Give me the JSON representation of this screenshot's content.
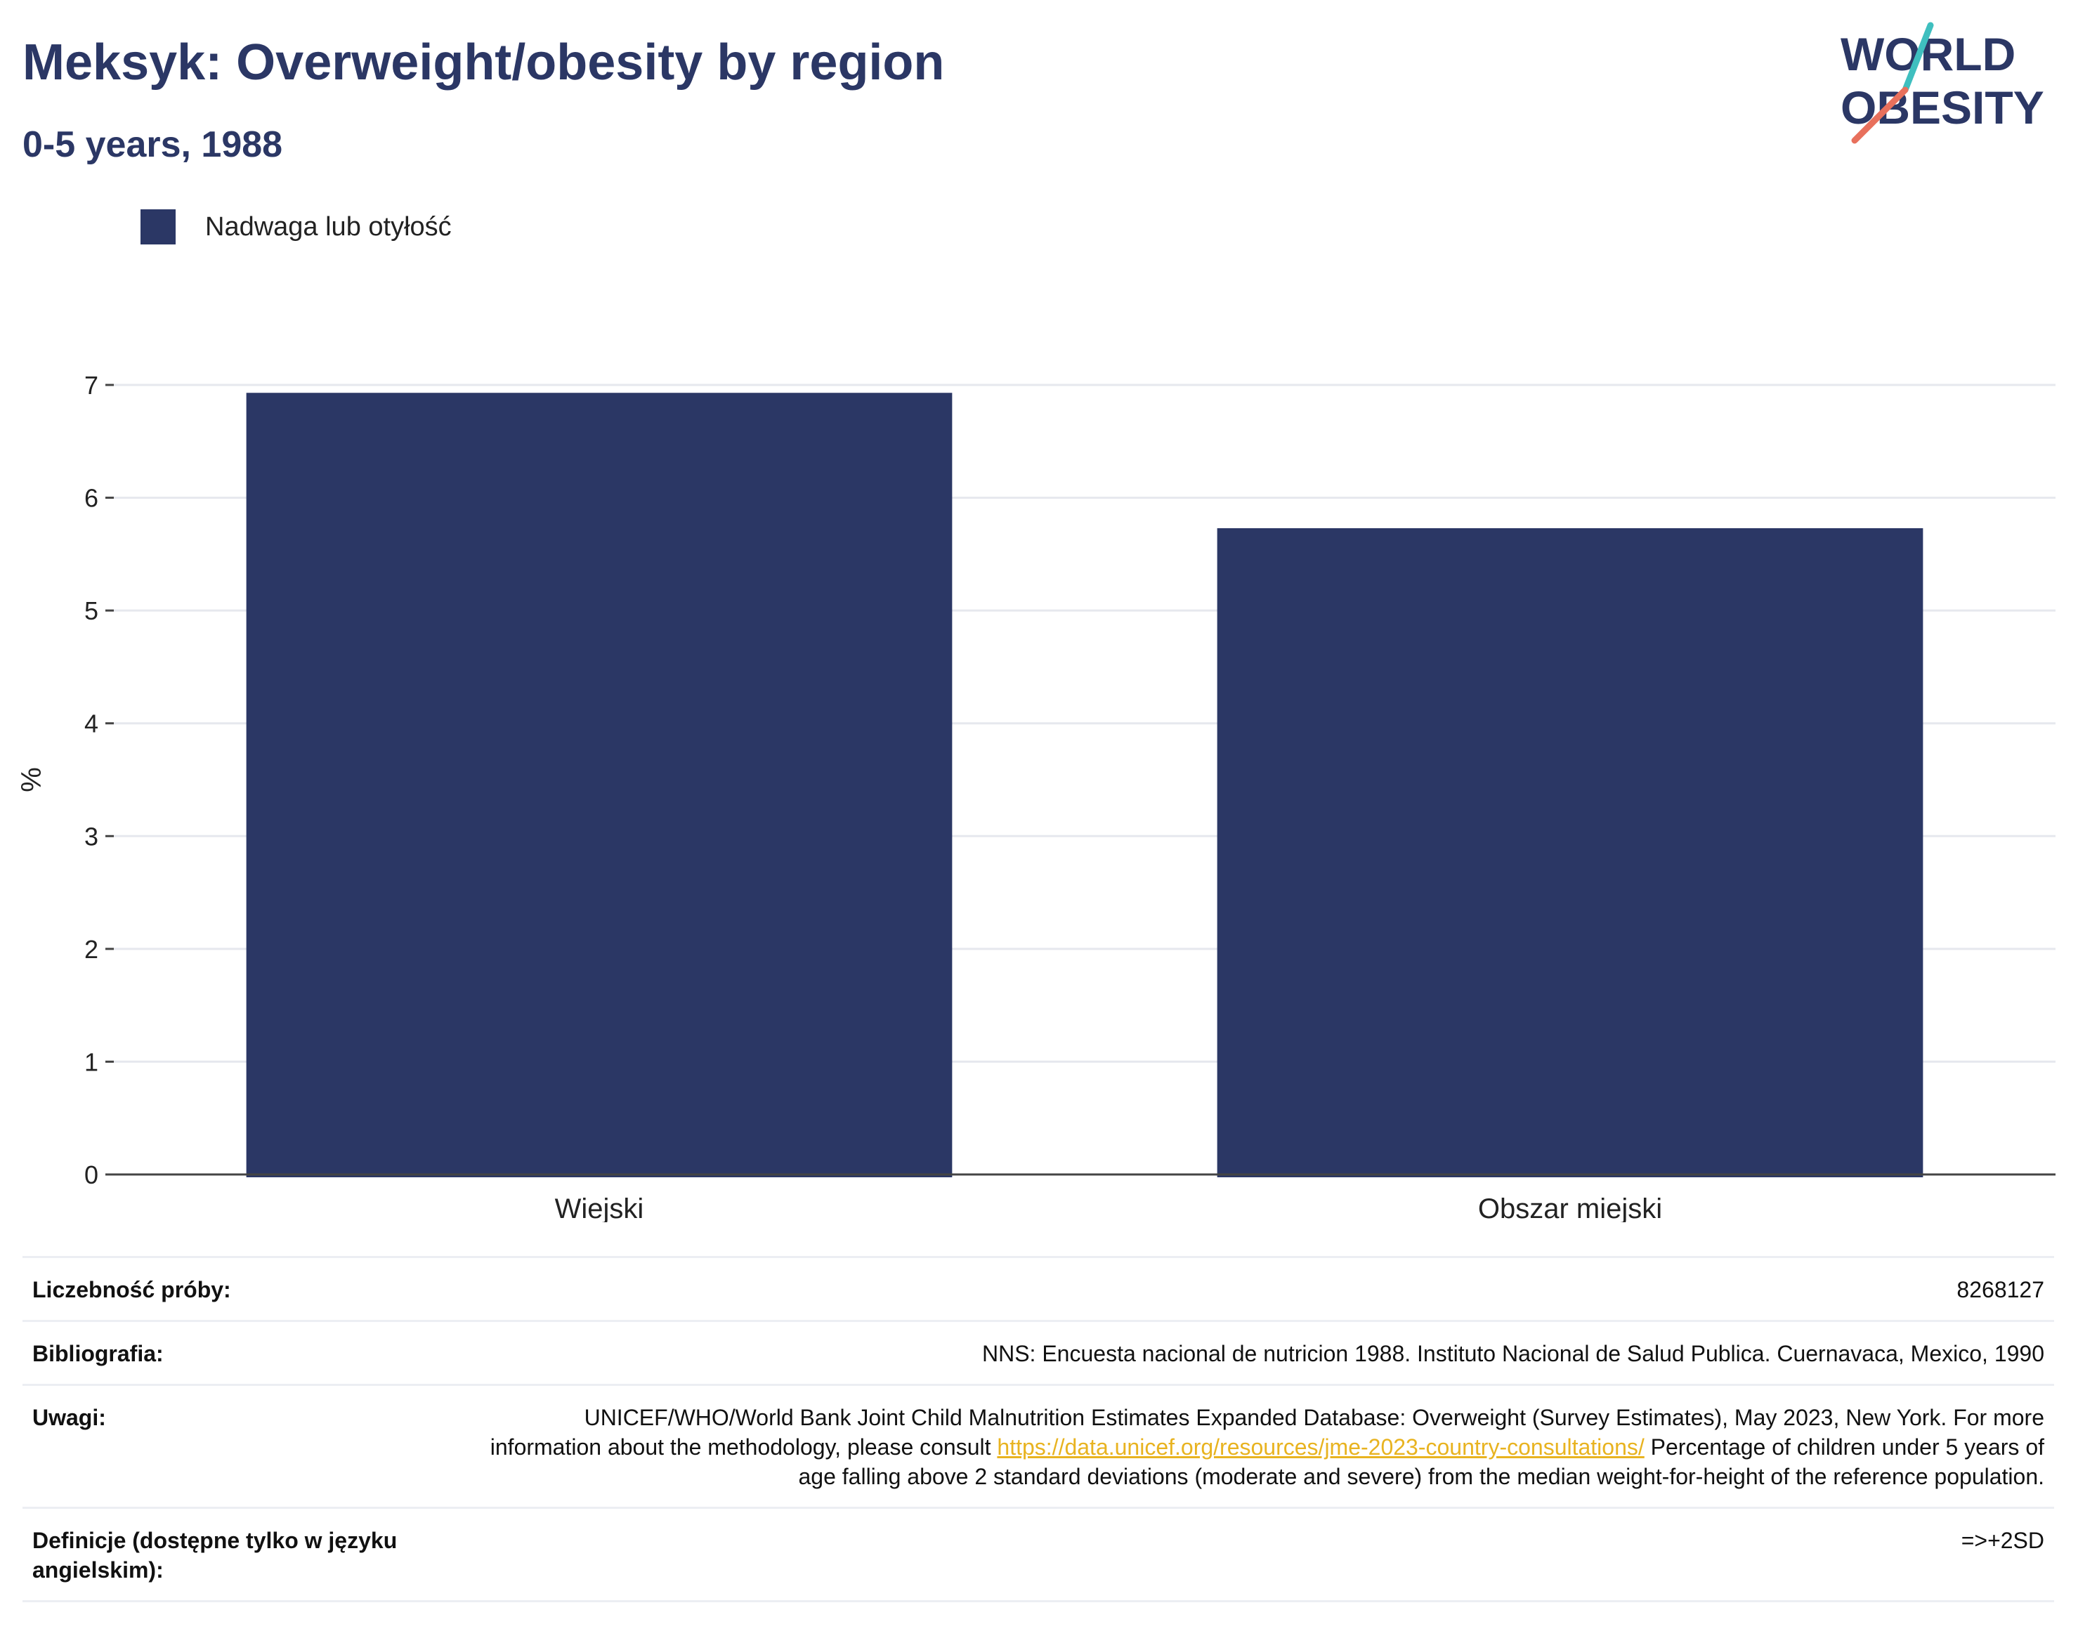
{
  "header": {
    "title": "Meksyk: Overweight/obesity by region",
    "subtitle": "0-5 years, 1988"
  },
  "logo": {
    "line1": "WORLD",
    "line2": "OBESITY",
    "colors": {
      "text": "#2b3765",
      "accent_teal": "#3fbfbf",
      "accent_coral": "#e8705c"
    }
  },
  "legend": {
    "items": [
      {
        "label": "Nadwaga lub otyłość",
        "color": "#2b3765"
      }
    ]
  },
  "chart_data": {
    "type": "bar",
    "categories": [
      "Wiejski",
      "Obszar miejski"
    ],
    "series": [
      {
        "name": "Nadwaga lub otyłość",
        "values": [
          6.93,
          5.73
        ],
        "color": "#2b3765"
      }
    ],
    "ylabel": "%",
    "xlabel": "",
    "ylim": [
      0,
      7
    ],
    "yticks": [
      0,
      1,
      2,
      3,
      4,
      5,
      6,
      7
    ],
    "grid": true,
    "legend_position": "top-left"
  },
  "info": {
    "sample_size": {
      "label": "Liczebność próby:",
      "value": "8268127"
    },
    "bibliography": {
      "label": "Bibliografia:",
      "value": "NNS: Encuesta nacional de nutricion 1988. Instituto Nacional de Salud Publica. Cuernavaca, Mexico, 1990"
    },
    "notes": {
      "label": "Uwagi:",
      "text_before_link": "UNICEF/WHO/World Bank Joint Child Malnutrition Estimates Expanded Database: Overweight (Survey Estimates), May 2023, New York. For more information about the methodology, please consult ",
      "link": "https://data.unicef.org/resources/jme-2023-country-consultations/",
      "text_after_link": " Percentage of children under 5 years of age falling above 2 standard deviations (moderate and severe) from the median weight-for-height of the reference population."
    },
    "definitions": {
      "label": "Definicje (dostępne tylko w języku angielskim):",
      "value": "=>+2SD"
    }
  }
}
